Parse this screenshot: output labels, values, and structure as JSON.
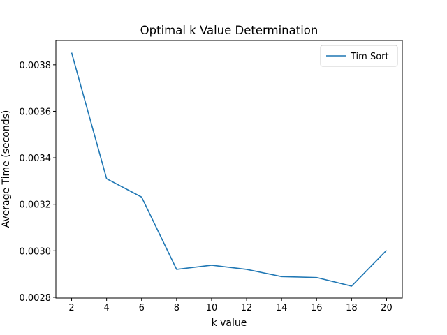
{
  "chart_data": {
    "type": "line",
    "title": "Optimal k Value Determination",
    "xlabel": "k value",
    "ylabel": "Average Time (seconds)",
    "x": [
      2,
      4,
      6,
      8,
      10,
      12,
      14,
      16,
      18,
      20
    ],
    "x_ticks": [
      "2",
      "4",
      "6",
      "8",
      "10",
      "12",
      "14",
      "16",
      "18",
      "20"
    ],
    "xlim": [
      1.1,
      20.9
    ],
    "y_ticks": [
      {
        "value": 0.0028,
        "label": "0.0028"
      },
      {
        "value": 0.003,
        "label": "0.0030"
      },
      {
        "value": 0.0032,
        "label": "0.0032"
      },
      {
        "value": 0.0034,
        "label": "0.0034"
      },
      {
        "value": 0.0036,
        "label": "0.0036"
      },
      {
        "value": 0.0038,
        "label": "0.0038"
      }
    ],
    "ylim": [
      0.0027968,
      0.0039046
    ],
    "series": [
      {
        "name": "Tim Sort",
        "color": "#1f77b4",
        "values": [
          0.003852,
          0.00331,
          0.003231,
          0.00292,
          0.002938,
          0.00292,
          0.002889,
          0.002885,
          0.002848,
          0.003002
        ]
      }
    ],
    "grid": false,
    "legend_position": "upper right"
  }
}
